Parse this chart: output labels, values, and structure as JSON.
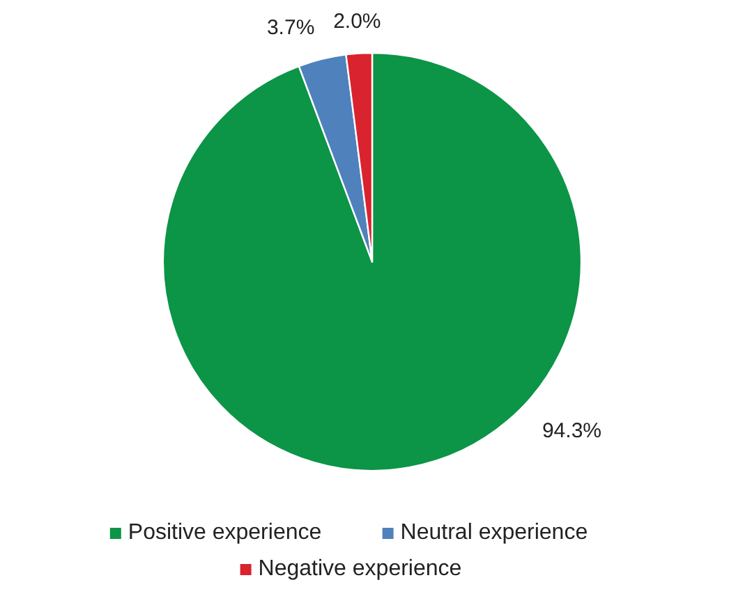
{
  "chart_data": {
    "type": "pie",
    "categories": [
      "Positive experience",
      "Neutral experience",
      "Negative experience"
    ],
    "values": [
      94.3,
      3.7,
      2.0
    ],
    "colors": [
      "#0c9447",
      "#4f81bd",
      "#d9232e"
    ],
    "value_labels": [
      "94.3%",
      "3.7%",
      "2.0%"
    ],
    "legend": "bottom"
  }
}
